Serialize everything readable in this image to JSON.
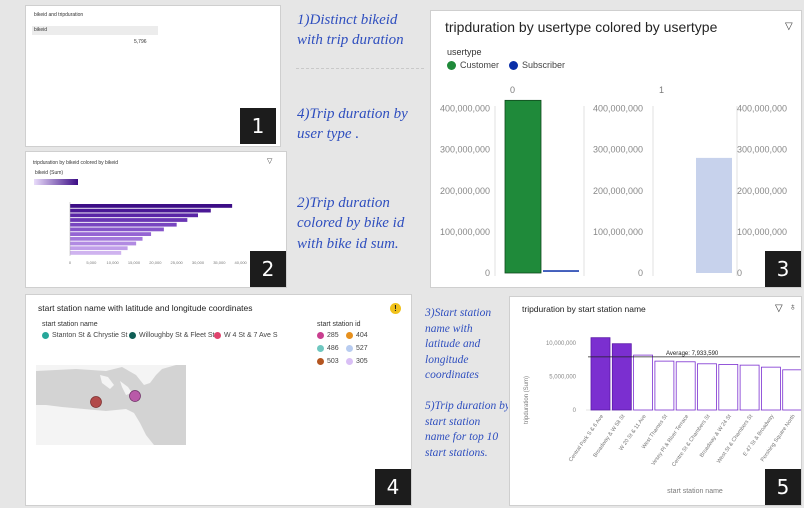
{
  "panel1": {
    "title": "bikeid and tripduration",
    "col_header": "bikeid",
    "value": "5,796",
    "badge": "1"
  },
  "panel2": {
    "title": "tripduration by bikeid colored by bikeid",
    "legend_label": "bikeid (Sum)",
    "badge": "2",
    "chart_data": {
      "type": "bar",
      "orientation": "horizontal",
      "values": [
        38000,
        33000,
        30000,
        27500,
        25000,
        22000,
        19000,
        17000,
        15500,
        13500,
        12000
      ],
      "xlim": [
        0,
        45000
      ],
      "x_ticks": [
        "0",
        "5,000",
        "10,000",
        "15,000",
        "20,000",
        "25,000",
        "30,000",
        "35,000",
        "40,000",
        "45,000"
      ]
    }
  },
  "notes_top": [
    {
      "text": "1)Distinct bikeid\nwith trip duration"
    },
    {
      "text": "4)Trip duration by\nuser type ."
    },
    {
      "text": "2)Trip duration\ncolored by bike id\nwith bike id sum."
    }
  ],
  "panel3": {
    "title": "tripduration by usertype colored by usertype",
    "legend_title": "usertype",
    "legend": [
      {
        "label": "Customer",
        "color": "#1f8a3a"
      },
      {
        "label": "Subscriber",
        "color": "#0a2fa8"
      }
    ],
    "facets": [
      "0",
      "1"
    ],
    "badge": "3",
    "chart_data": {
      "type": "bar",
      "facets": [
        {
          "name": "0",
          "categories": [
            "Customer",
            "Subscriber"
          ],
          "values": [
            420000000,
            3000000
          ]
        },
        {
          "name": "1",
          "categories": [
            "Customer",
            "Subscriber"
          ],
          "values": [
            0,
            280000000
          ]
        }
      ],
      "ylim": [
        0,
        450000000
      ],
      "y_ticks": [
        "0",
        "100,000,000",
        "200,000,000",
        "300,000,000",
        "400,000,000"
      ]
    }
  },
  "panel4": {
    "title": "start station name with latitude and longitude coordinates",
    "legend_left_title": "start station name",
    "legend_left": [
      {
        "label": "Stanton St & Chrystie St",
        "color": "#27a79a"
      },
      {
        "label": "Willoughby St & Fleet St",
        "color": "#0f5e55"
      },
      {
        "label": "W 4 St & 7 Ave S",
        "color": "#e0436d"
      }
    ],
    "legend_right_title": "start station id",
    "legend_right": [
      {
        "label": "285",
        "color": "#c93f8f"
      },
      {
        "label": "404",
        "color": "#e6901e"
      },
      {
        "label": "486",
        "color": "#6fc7c0"
      },
      {
        "label": "527",
        "color": "#b8ccf0"
      },
      {
        "label": "503",
        "color": "#b45520"
      },
      {
        "label": "305",
        "color": "#d9bff5"
      }
    ],
    "badge": "4"
  },
  "notes_bottom": {
    "text": "3)Start station\nname with\nlatitude and\nlongitude\ncoordinates\n\n5)Trip duration by\nstart station\nname for top 10\nstart stations."
  },
  "panel5": {
    "title": "tripduration by start station name",
    "ylabel": "tripduration (Sum)",
    "xlabel": "start station name",
    "average_label": "Average: 7,933,590",
    "badge": "5",
    "chart_data": {
      "type": "bar",
      "categories": [
        "Central Park S & 6 Ave",
        "Broadway & W 58 St",
        "W 20 St & 11 Ave",
        "West Thames St",
        "Vesey Pl & River Terrace",
        "Centre St & Chambers St",
        "Broadway & W 24 St",
        "West St & Chambers St",
        "E 47 St & Broadway",
        "Pershing Square North"
      ],
      "values": [
        10800000,
        9900000,
        8200000,
        7300000,
        7200000,
        6900000,
        6800000,
        6700000,
        6400000,
        6000000
      ],
      "average": 7933590,
      "ylim": [
        0,
        11500000
      ],
      "y_ticks": [
        "0",
        "5,000,000",
        "10,000,000"
      ]
    }
  }
}
